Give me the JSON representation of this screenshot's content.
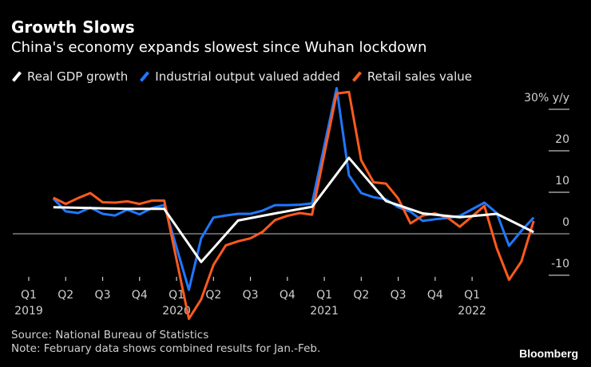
{
  "chart_data": {
    "type": "line",
    "title": "Growth Slows",
    "subtitle": "China's economy expands slowest since Wuhan lockdown",
    "ylabel": "30% y/y",
    "ylim": [
      -10,
      30
    ],
    "yticks": [
      {
        "value": 30,
        "label": "30% y/y"
      },
      {
        "value": 20,
        "label": "20"
      },
      {
        "value": 10,
        "label": "10"
      },
      {
        "value": 0,
        "label": "0"
      },
      {
        "value": -10,
        "label": "-10"
      }
    ],
    "xticks": [
      {
        "date": "2019-01",
        "q": "Q1",
        "year": "2019"
      },
      {
        "date": "2019-04",
        "q": "Q2",
        "year": ""
      },
      {
        "date": "2019-07",
        "q": "Q3",
        "year": ""
      },
      {
        "date": "2019-10",
        "q": "Q4",
        "year": ""
      },
      {
        "date": "2020-01",
        "q": "Q1",
        "year": "2020"
      },
      {
        "date": "2020-04",
        "q": "Q2",
        "year": ""
      },
      {
        "date": "2020-07",
        "q": "Q3",
        "year": ""
      },
      {
        "date": "2020-10",
        "q": "Q4",
        "year": ""
      },
      {
        "date": "2021-01",
        "q": "Q1",
        "year": "2021"
      },
      {
        "date": "2021-04",
        "q": "Q2",
        "year": ""
      },
      {
        "date": "2021-07",
        "q": "Q3",
        "year": ""
      },
      {
        "date": "2021-10",
        "q": "Q4",
        "year": ""
      },
      {
        "date": "2022-01",
        "q": "Q1",
        "year": "2022"
      }
    ],
    "legend_placement": "top-left",
    "grid": "horizontal ticks at right; zero line",
    "series": [
      {
        "name": "Real GDP growth",
        "color": "#ffffff",
        "x": [
          "2019-03",
          "2019-06",
          "2019-09",
          "2019-12",
          "2020-03",
          "2020-06",
          "2020-09",
          "2020-12",
          "2021-03",
          "2021-06",
          "2021-09",
          "2021-12",
          "2022-03",
          "2022-06"
        ],
        "values": [
          6.4,
          6.2,
          6.0,
          6.0,
          -6.8,
          3.2,
          4.9,
          6.5,
          18.3,
          7.9,
          4.9,
          4.0,
          4.8,
          0.4
        ]
      },
      {
        "name": "Industrial output valued added",
        "color": "#1f78ff",
        "x": [
          "2019-03",
          "2019-04",
          "2019-05",
          "2019-06",
          "2019-07",
          "2019-08",
          "2019-09",
          "2019-10",
          "2019-11",
          "2019-12",
          "2020-02",
          "2020-03",
          "2020-04",
          "2020-05",
          "2020-06",
          "2020-07",
          "2020-08",
          "2020-09",
          "2020-10",
          "2020-11",
          "2020-12",
          "2021-02",
          "2021-03",
          "2021-04",
          "2021-05",
          "2021-06",
          "2021-07",
          "2021-08",
          "2021-09",
          "2021-10",
          "2021-11",
          "2021-12",
          "2022-02",
          "2022-03",
          "2022-04",
          "2022-05",
          "2022-06"
        ],
        "values": [
          8.5,
          5.4,
          5.0,
          6.3,
          4.8,
          4.4,
          5.8,
          4.7,
          6.2,
          6.9,
          -13.5,
          -1.1,
          3.9,
          4.4,
          4.8,
          4.8,
          5.6,
          6.9,
          6.9,
          7.0,
          7.3,
          35.1,
          14.1,
          9.8,
          8.8,
          8.3,
          6.4,
          5.3,
          3.1,
          3.5,
          3.8,
          4.3,
          7.5,
          5.0,
          -2.9,
          0.7,
          3.9
        ]
      },
      {
        "name": "Retail sales value",
        "color": "#ff5a1f",
        "x": [
          "2019-03",
          "2019-04",
          "2019-05",
          "2019-06",
          "2019-07",
          "2019-08",
          "2019-09",
          "2019-10",
          "2019-11",
          "2019-12",
          "2020-02",
          "2020-03",
          "2020-04",
          "2020-05",
          "2020-06",
          "2020-07",
          "2020-08",
          "2020-09",
          "2020-10",
          "2020-11",
          "2020-12",
          "2021-02",
          "2021-03",
          "2021-04",
          "2021-05",
          "2021-06",
          "2021-07",
          "2021-08",
          "2021-09",
          "2021-10",
          "2021-11",
          "2021-12",
          "2022-02",
          "2022-03",
          "2022-04",
          "2022-05",
          "2022-06"
        ],
        "values": [
          8.7,
          7.2,
          8.6,
          9.8,
          7.6,
          7.5,
          7.8,
          7.2,
          8.0,
          8.0,
          -20.5,
          -15.8,
          -7.5,
          -2.8,
          -1.8,
          -1.1,
          0.5,
          3.3,
          4.3,
          5.0,
          4.6,
          33.8,
          34.2,
          17.7,
          12.4,
          12.1,
          8.5,
          2.5,
          4.4,
          4.9,
          3.9,
          1.7,
          6.7,
          -3.5,
          -11.1,
          -6.7,
          3.1
        ]
      }
    ]
  },
  "footer": {
    "source": "Source: National Bureau of Statistics",
    "note": "Note: February data shows combined results for Jan.-Feb.",
    "brand": "Bloomberg"
  }
}
